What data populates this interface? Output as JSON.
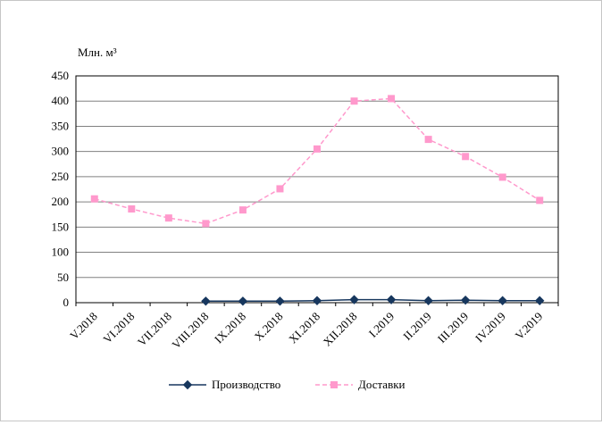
{
  "chart_data": {
    "type": "line",
    "title": "",
    "y_axis_label": "Млн. м³",
    "categories": [
      "V.2018",
      "VI.2018",
      "VII.2018",
      "VIII.2018",
      "IX.2018",
      "X.2018",
      "XI.2018",
      "XII.2018",
      "I.2019",
      "II.2019",
      "III.2019",
      "IV.2019",
      "V.2019"
    ],
    "series": [
      {
        "name": "Производство",
        "color": "#17375E",
        "marker": "diamond",
        "line_style": "solid",
        "values": [
          null,
          null,
          null,
          3,
          3,
          3,
          4,
          6,
          6,
          4,
          5,
          4,
          4
        ]
      },
      {
        "name": "Доставки",
        "color": "#FF99CC",
        "marker": "square",
        "line_style": "dashed",
        "values": [
          206,
          186,
          168,
          157,
          184,
          226,
          305,
          400,
          405,
          324,
          290,
          249,
          203
        ]
      }
    ],
    "ylim": [
      0,
      450
    ],
    "y_tick_step": 50,
    "grid": true,
    "legend_position": "bottom"
  }
}
